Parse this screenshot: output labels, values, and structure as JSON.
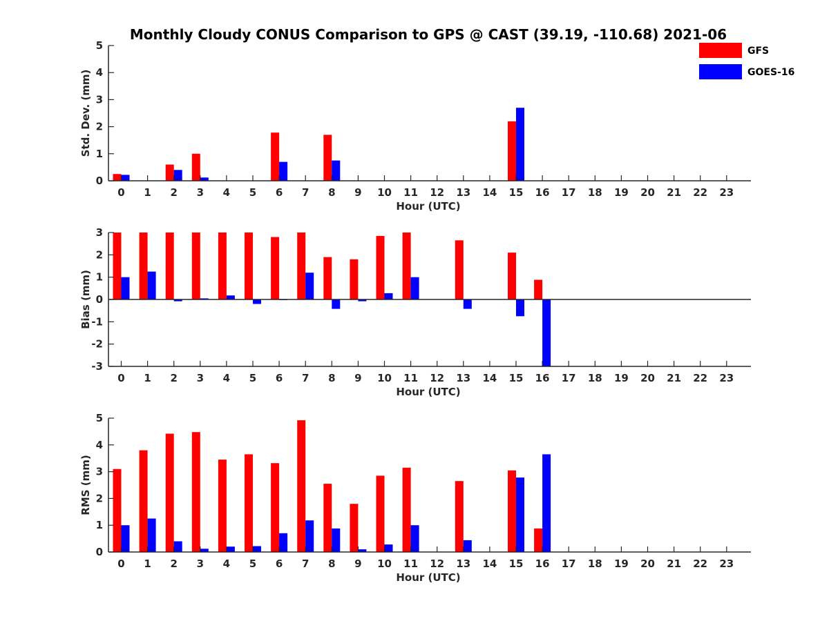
{
  "title": "Monthly Cloudy CONUS Comparison to GPS @ CAST (39.19, -110.68) 2021-06",
  "legend": {
    "placement": "top-right",
    "items": [
      {
        "label": "GFS",
        "color": "#ff0000"
      },
      {
        "label": "GOES-16",
        "color": "#0000ff"
      }
    ]
  },
  "chart_data": [
    {
      "type": "bar",
      "ylabel": "Std. Dev. (mm)",
      "xlabel": "Hour (UTC)",
      "ylim": [
        0,
        5
      ],
      "yticks": [
        0,
        1,
        2,
        3,
        4,
        5
      ],
      "categories": [
        "0",
        "1",
        "2",
        "3",
        "4",
        "5",
        "6",
        "7",
        "8",
        "9",
        "10",
        "11",
        "12",
        "13",
        "14",
        "15",
        "16",
        "17",
        "18",
        "19",
        "20",
        "21",
        "22",
        "23"
      ],
      "series": [
        {
          "name": "GFS",
          "color": "#ff0000",
          "values": [
            0.25,
            null,
            0.6,
            1.0,
            null,
            null,
            1.78,
            null,
            1.7,
            null,
            null,
            null,
            null,
            null,
            null,
            2.2,
            null,
            null,
            null,
            null,
            null,
            null,
            null,
            null
          ]
        },
        {
          "name": "GOES-16",
          "color": "#0000ff",
          "values": [
            0.22,
            null,
            0.4,
            0.12,
            null,
            null,
            0.7,
            null,
            0.75,
            null,
            null,
            null,
            null,
            null,
            null,
            2.7,
            null,
            null,
            null,
            null,
            null,
            null,
            null,
            null
          ]
        }
      ]
    },
    {
      "type": "bar",
      "ylabel": "Bias (mm)",
      "xlabel": "Hour (UTC)",
      "ylim": [
        -3,
        3
      ],
      "yticks": [
        -3,
        -2,
        -1,
        0,
        1,
        2,
        3
      ],
      "categories": [
        "0",
        "1",
        "2",
        "3",
        "4",
        "5",
        "6",
        "7",
        "8",
        "9",
        "10",
        "11",
        "12",
        "13",
        "14",
        "15",
        "16",
        "17",
        "18",
        "19",
        "20",
        "21",
        "22",
        "23"
      ],
      "series": [
        {
          "name": "GFS",
          "color": "#ff0000",
          "values": [
            3.0,
            3.0,
            3.0,
            3.0,
            3.0,
            3.0,
            2.8,
            3.0,
            1.9,
            1.8,
            2.85,
            3.0,
            null,
            2.65,
            null,
            2.1,
            0.88,
            null,
            null,
            null,
            null,
            null,
            null,
            null
          ]
        },
        {
          "name": "GOES-16",
          "color": "#0000ff",
          "values": [
            1.0,
            1.25,
            -0.08,
            0.05,
            0.18,
            -0.2,
            -0.03,
            1.2,
            -0.42,
            -0.08,
            0.28,
            1.0,
            null,
            -0.42,
            null,
            -0.75,
            -3.0,
            null,
            null,
            null,
            null,
            null,
            null,
            null
          ]
        }
      ]
    },
    {
      "type": "bar",
      "ylabel": "RMS (mm)",
      "xlabel": "Hour (UTC)",
      "ylim": [
        0,
        5
      ],
      "yticks": [
        0,
        1,
        2,
        3,
        4,
        5
      ],
      "categories": [
        "0",
        "1",
        "2",
        "3",
        "4",
        "5",
        "6",
        "7",
        "8",
        "9",
        "10",
        "11",
        "12",
        "13",
        "14",
        "15",
        "16",
        "17",
        "18",
        "19",
        "20",
        "21",
        "22",
        "23"
      ],
      "series": [
        {
          "name": "GFS",
          "color": "#ff0000",
          "values": [
            3.1,
            3.8,
            4.42,
            4.48,
            3.45,
            3.65,
            3.32,
            4.92,
            2.55,
            1.8,
            2.85,
            3.15,
            null,
            2.65,
            null,
            3.05,
            0.88,
            null,
            null,
            null,
            null,
            null,
            null,
            null
          ]
        },
        {
          "name": "GOES-16",
          "color": "#0000ff",
          "values": [
            1.0,
            1.25,
            0.4,
            0.12,
            0.2,
            0.22,
            0.7,
            1.18,
            0.88,
            0.1,
            0.28,
            1.0,
            null,
            0.44,
            null,
            2.78,
            3.65,
            null,
            null,
            null,
            null,
            null,
            null,
            null
          ]
        }
      ]
    }
  ]
}
